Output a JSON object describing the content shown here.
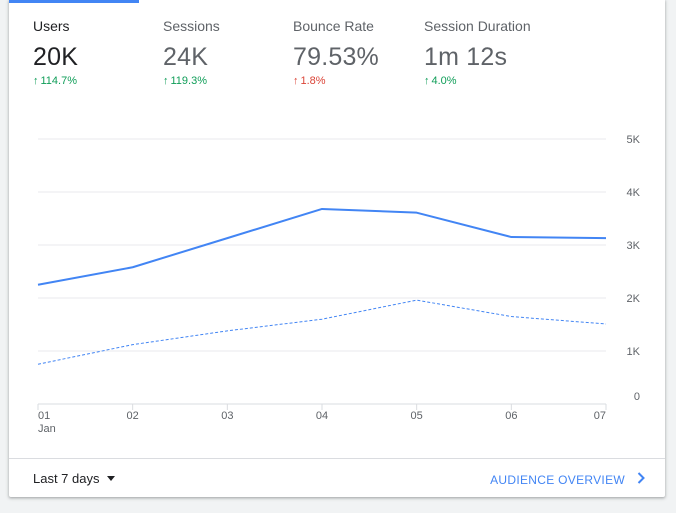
{
  "metrics": [
    {
      "label": "Users",
      "value": "20K",
      "change": "114.7%",
      "direction": "up",
      "status_color": "#0f9d58"
    },
    {
      "label": "Sessions",
      "value": "24K",
      "change": "119.3%",
      "direction": "up",
      "status_color": "#0f9d58"
    },
    {
      "label": "Bounce Rate",
      "value": "79.53%",
      "change": "1.8%",
      "direction": "up",
      "status_color": "#db4437"
    },
    {
      "label": "Session Duration",
      "value": "1m 12s",
      "change": "4.0%",
      "direction": "up",
      "status_color": "#0f9d58"
    }
  ],
  "chart_data": {
    "type": "line",
    "categories": [
      "01",
      "02",
      "03",
      "04",
      "05",
      "06",
      "07"
    ],
    "x_sublabel": "Jan",
    "series": [
      {
        "values": [
          2250,
          2580,
          3130,
          3680,
          3610,
          3150,
          3130
        ],
        "style": "solid",
        "color": "#4285f4"
      },
      {
        "values": [
          750,
          1120,
          1380,
          1600,
          1960,
          1650,
          1510
        ],
        "style": "dashed",
        "color": "#4285f4"
      }
    ],
    "y_ticks": [
      "0",
      "1K",
      "2K",
      "3K",
      "4K",
      "5K"
    ],
    "ylim": [
      0,
      5000
    ],
    "y_axis_side": "right",
    "grid": true
  },
  "footer": {
    "date_range": "Last 7 days",
    "overview_link": "AUDIENCE OVERVIEW"
  },
  "colors": {
    "accent": "#4285f4"
  }
}
